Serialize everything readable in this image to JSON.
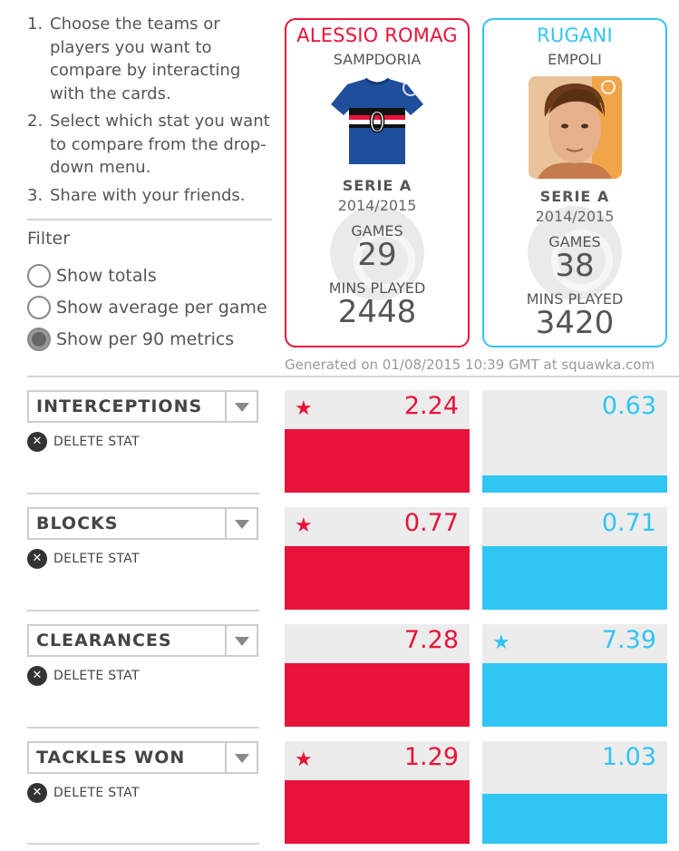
{
  "instructions": [
    {
      "num": "1.",
      "text": "Choose the teams or players you want to compare by interacting with the cards."
    },
    {
      "num": "2.",
      "text": "Select which stat you want to compare from the drop-down menu."
    },
    {
      "num": "3.",
      "text": "Share with your friends."
    }
  ],
  "filter": {
    "title": "Filter",
    "options": [
      {
        "label": "Show totals",
        "selected": false
      },
      {
        "label": "Show average per game",
        "selected": false
      },
      {
        "label": "Show per 90 metrics",
        "selected": true
      }
    ]
  },
  "players": [
    {
      "name": "ALESSIO ROMAG",
      "team": "SAMPDORIA",
      "league": "SERIE A",
      "season": "2014/2015",
      "games_label": "GAMES",
      "games": "29",
      "mins_label": "MINS PLAYED",
      "mins": "2448",
      "color": "#e8133a",
      "image": "shirt-icon"
    },
    {
      "name": "RUGANI",
      "team": "EMPOLI",
      "league": "SERIE A",
      "season": "2014/2015",
      "games_label": "GAMES",
      "games": "38",
      "mins_label": "MINS PLAYED",
      "mins": "3420",
      "color": "#31c5f4",
      "image": "player-photo"
    }
  ],
  "generated": "Generated on 01/08/2015 10:39 GMT at squawka.com",
  "delete_label": "DELETE STAT",
  "stats": [
    {
      "name": "INTERCEPTIONS",
      "left": "2.24",
      "right": "0.63",
      "winner": "left",
      "left_fill": 0.62,
      "right_fill": 0.17
    },
    {
      "name": "BLOCKS",
      "left": "0.77",
      "right": "0.71",
      "winner": "left",
      "left_fill": 0.62,
      "right_fill": 0.62
    },
    {
      "name": "CLEARANCES",
      "left": "7.28",
      "right": "7.39",
      "winner": "right",
      "left_fill": 0.62,
      "right_fill": 0.62
    },
    {
      "name": "TACKLES WON",
      "left": "1.29",
      "right": "1.03",
      "winner": "left",
      "left_fill": 0.62,
      "right_fill": 0.49
    }
  ]
}
